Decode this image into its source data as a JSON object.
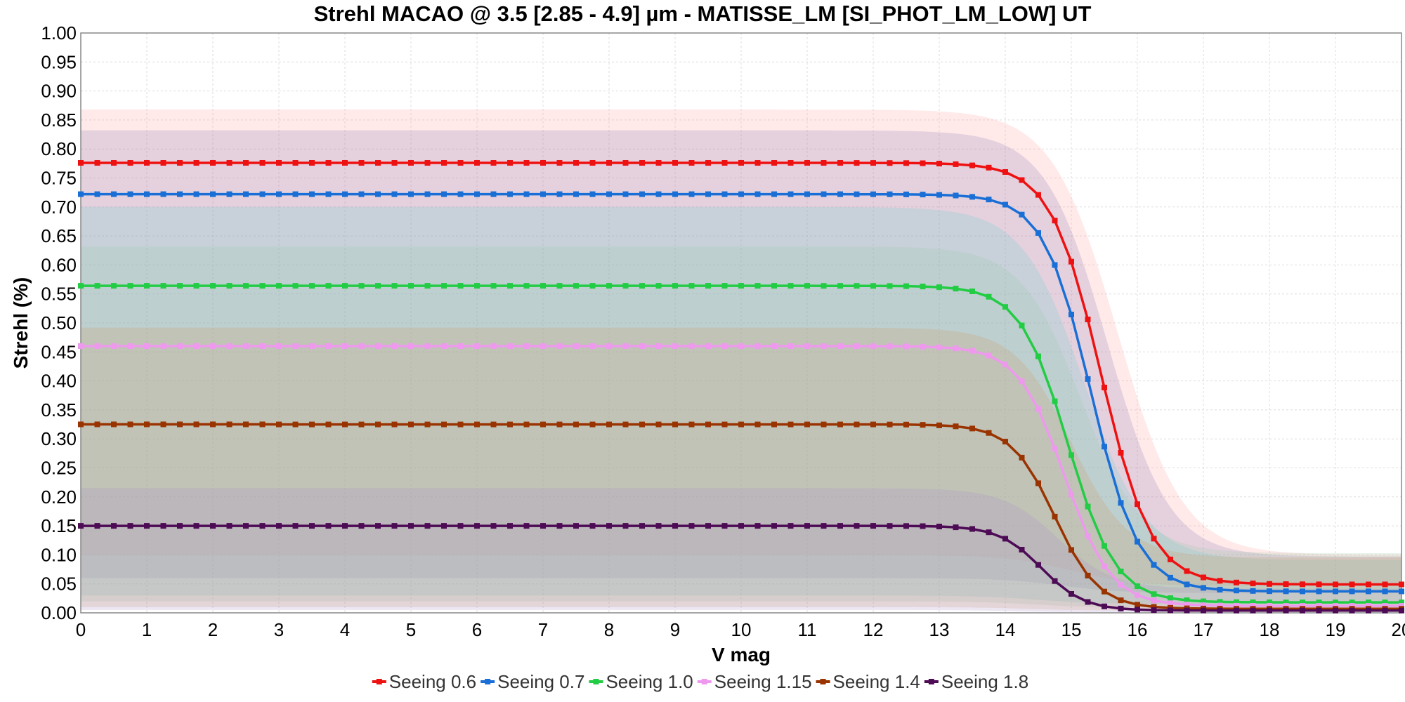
{
  "chart_data": {
    "type": "line",
    "title": "Strehl MACAO @ 3.5 [2.85 - 4.9] µm - MATISSE_LM [SI_PHOT_LM_LOW] UT",
    "xlabel": "V mag",
    "ylabel": "Strehl (%)",
    "xlim": [
      0,
      20
    ],
    "ylim": [
      0,
      1
    ],
    "x_ticks": [
      "0",
      "1",
      "2",
      "3",
      "4",
      "5",
      "6",
      "7",
      "8",
      "9",
      "10",
      "11",
      "12",
      "13",
      "14",
      "15",
      "16",
      "17",
      "18",
      "19",
      "20"
    ],
    "y_ticks": [
      "0.00",
      "0.05",
      "0.10",
      "0.15",
      "0.20",
      "0.25",
      "0.30",
      "0.35",
      "0.40",
      "0.45",
      "0.50",
      "0.55",
      "0.60",
      "0.65",
      "0.70",
      "0.75",
      "0.80",
      "0.85",
      "0.90",
      "0.95",
      "1.00"
    ],
    "grid": true,
    "legend_position": "bottom",
    "x_step": 0.25,
    "curve_model": "logistic",
    "series": [
      {
        "name": "Seeing 0.6",
        "color": "#ee1111",
        "band_color": "#ff9999",
        "plateau": 0.776,
        "floor": 0.049,
        "midpoint": 15.45,
        "width": 0.38,
        "band_upper": 0.868,
        "band_lower": 0.1
      },
      {
        "name": "Seeing 0.7",
        "color": "#1a6fd6",
        "band_color": "#8a7bb8",
        "plateau": 0.722,
        "floor": 0.037,
        "midpoint": 15.3,
        "width": 0.36,
        "band_upper": 0.832,
        "band_lower": 0.06
      },
      {
        "name": "Seeing 1.0",
        "color": "#22cc44",
        "band_color": "#66cccc",
        "plateau": 0.564,
        "floor": 0.018,
        "midpoint": 14.95,
        "width": 0.36,
        "band_upper": 0.7,
        "band_lower": 0.03
      },
      {
        "name": "Seeing 1.15",
        "color": "#ee99ee",
        "band_color": "#99ccaa",
        "plateau": 0.46,
        "floor": 0.012,
        "midpoint": 14.9,
        "width": 0.35,
        "band_upper": 0.632,
        "band_lower": 0.02
      },
      {
        "name": "Seeing 1.4",
        "color": "#993300",
        "band_color": "#cc9966",
        "plateau": 0.325,
        "floor": 0.007,
        "midpoint": 14.75,
        "width": 0.33,
        "band_upper": 0.492,
        "band_lower": 0.01
      },
      {
        "name": "Seeing 1.8",
        "color": "#4d0a55",
        "band_color": "#a98fc8",
        "plateau": 0.15,
        "floor": 0.004,
        "midpoint": 14.55,
        "width": 0.32,
        "band_upper": 0.215,
        "band_lower": 0.005
      }
    ]
  }
}
